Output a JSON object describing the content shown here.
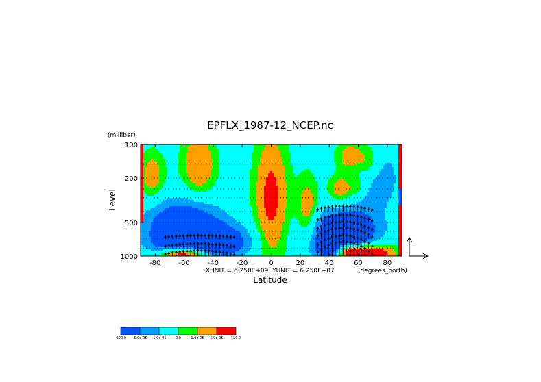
{
  "figure": {
    "title": "EPFLX_1987-12_NCEP.nc",
    "unit_note": "XUNIT = 6.250E+09, YUNIT = 6.250E+07",
    "x_units": "(degrees_north)",
    "y_units": "(millibar)"
  },
  "chart_data": {
    "type": "heatmap",
    "title": "EPFLX_1987-12_NCEP.nc",
    "xlabel": "Latitude",
    "ylabel": "Level",
    "x_units": "(degrees_north)",
    "y_units": "(millibar)",
    "xlim": [
      -90,
      90
    ],
    "ylim": [
      1000,
      100
    ],
    "y_scale": "log",
    "x_ticks": [
      {
        "value": -80,
        "label": "-80"
      },
      {
        "value": -60,
        "label": "-60"
      },
      {
        "value": -40,
        "label": "-40"
      },
      {
        "value": -20,
        "label": "-20"
      },
      {
        "value": 0,
        "label": "0"
      },
      {
        "value": 20,
        "label": "20"
      },
      {
        "value": 40,
        "label": "40"
      },
      {
        "value": 60,
        "label": "60"
      },
      {
        "value": 80,
        "label": "80"
      }
    ],
    "y_ticks": [
      {
        "value": 1000,
        "label": "1000"
      },
      {
        "value": 500,
        "label": "500"
      },
      {
        "value": 200,
        "label": "200"
      },
      {
        "value": 100,
        "label": "100"
      }
    ],
    "dotted_levels": [
      1000,
      850,
      700,
      600,
      500,
      400,
      300,
      250,
      200,
      150,
      100
    ],
    "colorbar": {
      "colors": [
        "#0055ff",
        "#00a0ff",
        "#00ffff",
        "#00ff00",
        "#ffa000",
        "#ff0000"
      ],
      "labels": [
        "-120.0",
        "-5.0e-05",
        "-1.0e-05",
        "0.0",
        "1.0e-05",
        "5.0e-05",
        "120.0"
      ]
    },
    "field_centers": [
      {
        "lat": -60,
        "p": 500,
        "v": -4,
        "dlat": 18,
        "dlnp": 0.35
      },
      {
        "lat": -35,
        "p": 750,
        "v": -4,
        "dlat": 15,
        "dlnp": 0.25
      },
      {
        "lat": -70,
        "p": 800,
        "v": -2.5,
        "dlat": 12,
        "dlnp": 0.3
      },
      {
        "lat": 50,
        "p": 600,
        "v": -5,
        "dlat": 16,
        "dlnp": 0.3
      },
      {
        "lat": 45,
        "p": 900,
        "v": -4,
        "dlat": 12,
        "dlnp": 0.18
      },
      {
        "lat": 70,
        "p": 200,
        "v": -2.5,
        "dlat": 12,
        "dlnp": 0.5
      },
      {
        "lat": -50,
        "p": 150,
        "v": 2.5,
        "dlat": 8,
        "dlnp": 0.45
      },
      {
        "lat": -82,
        "p": 190,
        "v": 2,
        "dlat": 6,
        "dlnp": 0.35
      },
      {
        "lat": 0,
        "p": 300,
        "v": 3,
        "dlat": 8,
        "dlnp": 0.9
      },
      {
        "lat": 55,
        "p": 130,
        "v": 2.5,
        "dlat": 7,
        "dlnp": 0.25
      },
      {
        "lat": 68,
        "p": 150,
        "v": 2.5,
        "dlat": 6,
        "dlnp": 0.3
      },
      {
        "lat": 48,
        "p": 250,
        "v": 2.2,
        "dlat": 6,
        "dlnp": 0.2
      },
      {
        "lat": 60,
        "p": 240,
        "v": 1.8,
        "dlat": 5,
        "dlnp": 0.18
      },
      {
        "lat": 25,
        "p": 400,
        "v": 2.2,
        "dlat": 5,
        "dlnp": 0.5
      },
      {
        "lat": -62,
        "p": 980,
        "v": 5.5,
        "dlat": 12,
        "dlnp": 0.1
      },
      {
        "lat": 62,
        "p": 940,
        "v": 6.5,
        "dlat": 14,
        "dlnp": 0.13
      },
      {
        "lat": 52,
        "p": 880,
        "v": 3,
        "dlat": 5,
        "dlnp": 0.12
      }
    ],
    "arrow_regions": [
      {
        "lat_min": -75,
        "lat_max": -25,
        "p_top": 700,
        "scale": 0.9
      },
      {
        "lat_min": 30,
        "lat_max": 70,
        "p_top": 350,
        "scale": 1.4
      }
    ]
  }
}
